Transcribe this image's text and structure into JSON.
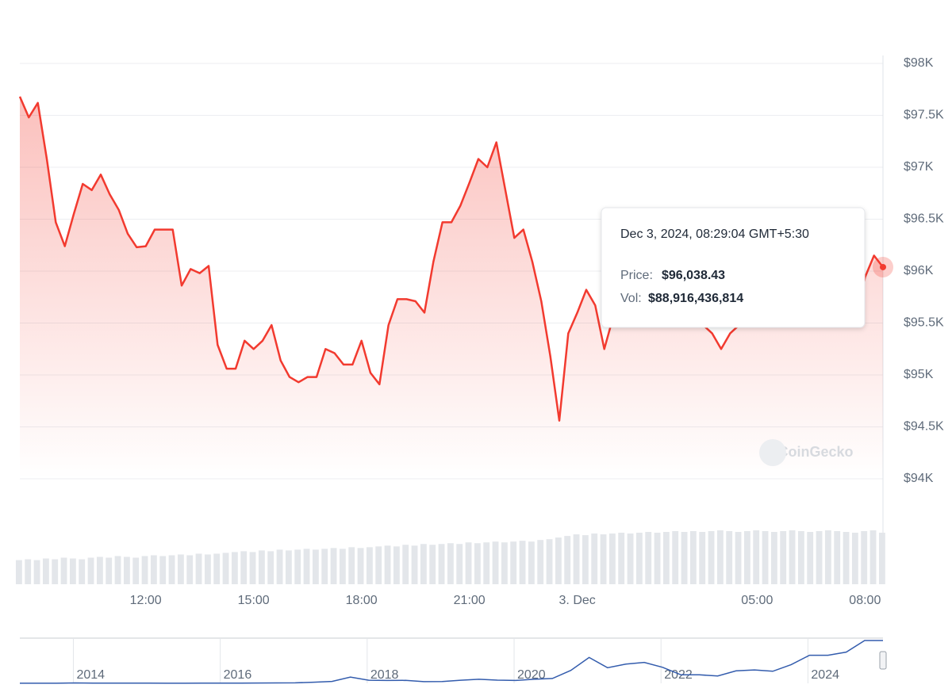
{
  "chart_data": {
    "type": "line",
    "categories": [
      null,
      null,
      null,
      null,
      null,
      null,
      null,
      null,
      null,
      null,
      null,
      null,
      null,
      null,
      "12:00",
      null,
      null,
      null,
      null,
      null,
      null,
      null,
      null,
      null,
      null,
      null,
      "15:00",
      null,
      null,
      null,
      null,
      null,
      null,
      null,
      null,
      null,
      null,
      null,
      "18:00",
      null,
      null,
      null,
      null,
      null,
      null,
      null,
      null,
      null,
      null,
      null,
      "21:00",
      null,
      null,
      null,
      null,
      null,
      null,
      null,
      null,
      null,
      null,
      null,
      "3. Dec",
      null,
      null,
      null,
      null,
      null,
      null,
      null,
      null,
      null,
      null,
      null,
      null,
      null,
      null,
      null,
      null,
      null,
      null,
      null,
      "05:00",
      null,
      null,
      null,
      null,
      null,
      null,
      null,
      null,
      null,
      null,
      null,
      "08:00",
      null,
      null
    ],
    "series": [
      {
        "name": "Price",
        "color": "#f23a2f",
        "values": [
          97680,
          97480,
          97620,
          97080,
          96470,
          96240,
          96550,
          96840,
          96780,
          96930,
          96740,
          96590,
          96360,
          96230,
          96240,
          96400,
          96400,
          96400,
          95860,
          96020,
          95980,
          96050,
          95290,
          95060,
          95060,
          95330,
          95250,
          95330,
          95480,
          95140,
          94980,
          94930,
          94980,
          94980,
          95250,
          95210,
          95100,
          95100,
          95330,
          95020,
          94910,
          95480,
          95730,
          95730,
          95710,
          95600,
          96090,
          96470,
          96470,
          96630,
          96850,
          97080,
          97000,
          97240,
          96780,
          96320,
          96400,
          96090,
          95710,
          95180,
          94560,
          95400,
          95600,
          95820,
          95670,
          95250,
          95560,
          95600,
          95650,
          95700,
          95650,
          95600,
          95680,
          95700,
          95650,
          95600,
          95480,
          95400,
          95250,
          95400,
          95480,
          95600,
          95650,
          95700,
          95680,
          95650,
          95700,
          95720,
          95680,
          95650,
          95600,
          95620,
          95550,
          95480,
          95940,
          96150,
          96038.43
        ]
      },
      {
        "name": "Vol",
        "color": "#e3e6ea",
        "values": [
          30,
          31,
          30,
          32,
          31,
          33,
          32,
          31,
          33,
          34,
          33,
          35,
          34,
          33,
          35,
          36,
          35,
          36,
          37,
          36,
          38,
          37,
          38,
          39,
          40,
          41,
          40,
          42,
          41,
          43,
          42,
          43,
          44,
          43,
          44,
          45,
          44,
          46,
          45,
          46,
          47,
          48,
          47,
          49,
          48,
          50,
          49,
          50,
          51,
          50,
          52,
          51,
          52,
          53,
          52,
          53,
          54,
          53,
          55,
          56,
          58,
          60,
          62,
          61,
          63,
          62,
          63,
          64,
          63,
          64,
          65,
          64,
          65,
          66,
          65,
          66,
          65,
          66,
          67,
          66,
          65,
          66,
          67,
          66,
          65,
          66,
          67,
          66,
          65,
          66,
          67,
          66,
          65,
          64,
          66,
          67,
          64
        ]
      }
    ],
    "ylim": [
      94000,
      98000
    ],
    "yticks": [
      {
        "value": 94000,
        "label": "$94K"
      },
      {
        "value": 94500,
        "label": "$94.5K"
      },
      {
        "value": 95000,
        "label": "$95K"
      },
      {
        "value": 95500,
        "label": "$95.5K"
      },
      {
        "value": 96000,
        "label": "$96K"
      },
      {
        "value": 96500,
        "label": "$96.5K"
      },
      {
        "value": 97000,
        "label": "$97K"
      },
      {
        "value": 97500,
        "label": "$97.5K"
      },
      {
        "value": 98000,
        "label": "$98K"
      }
    ],
    "grid": true,
    "tooltip": {
      "date": "Dec 3, 2024, 08:29:04 GMT+5:30",
      "price_label": "Price:",
      "price": "$96,038.43",
      "vol_label": "Vol:",
      "vol": "$88,916,436,814"
    },
    "watermark": "CoinGecko",
    "navigator": {
      "categories": [
        null,
        null,
        null,
        "2014",
        null,
        null,
        null,
        null,
        null,
        null,
        null,
        "2016",
        null,
        null,
        null,
        null,
        null,
        null,
        null,
        "2018",
        null,
        null,
        null,
        null,
        null,
        null,
        null,
        "2020",
        null,
        null,
        null,
        null,
        null,
        null,
        null,
        "2022",
        null,
        null,
        null,
        null,
        null,
        null,
        null,
        "2024",
        null,
        null,
        null,
        null
      ],
      "color": "#335cad",
      "values": [
        100,
        100,
        200,
        800,
        500,
        600,
        400,
        300,
        250,
        240,
        400,
        430,
        600,
        650,
        960,
        1100,
        2500,
        4300,
        14000,
        7000,
        6400,
        6600,
        3700,
        4000,
        7000,
        9000,
        7200,
        6400,
        9100,
        10800,
        29000,
        58000,
        35000,
        43000,
        47000,
        36000,
        19000,
        19000,
        16500,
        28000,
        30000,
        27000,
        42000,
        63000,
        63000,
        70000,
        96000,
        96000
      ]
    }
  }
}
